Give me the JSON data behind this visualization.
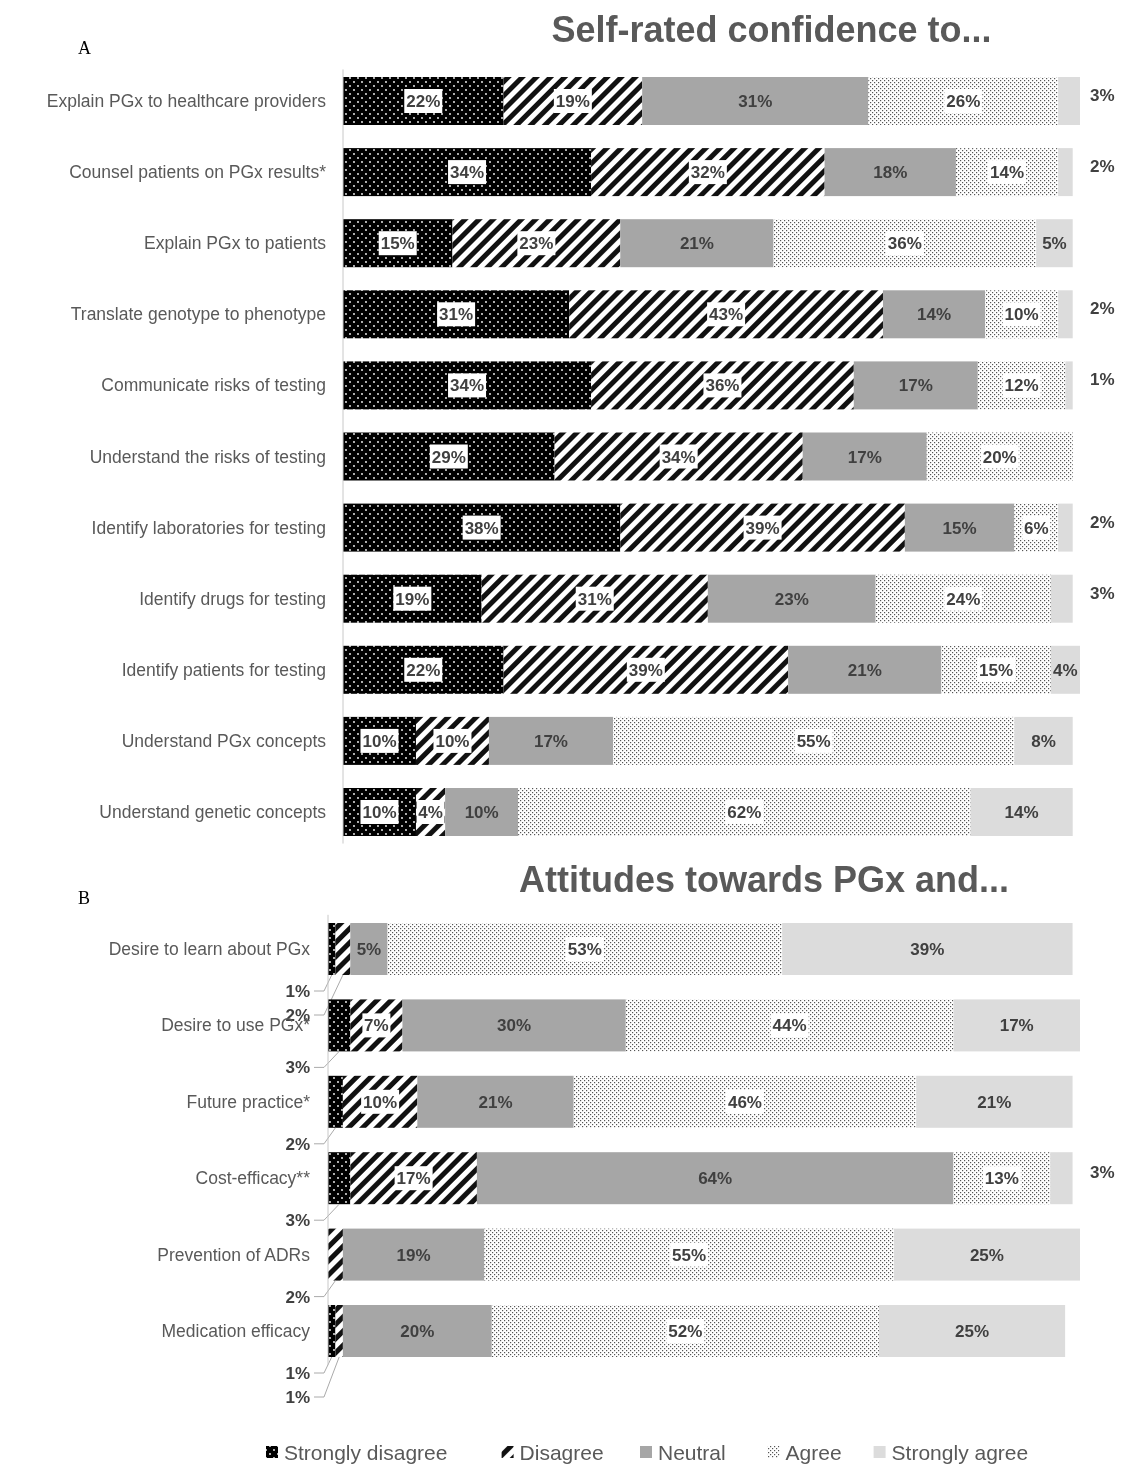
{
  "chart_data": [
    {
      "type": "bar",
      "orientation": "horizontal",
      "stacked": true,
      "title": "Self-rated confidence to...",
      "annotations": [
        "A"
      ],
      "categories": [
        "Explain PGx to healthcare providers",
        "Counsel patients on PGx results*",
        "Explain PGx to patients",
        "Translate genotype to phenotype",
        "Communicate risks of testing",
        "Understand the risks of testing",
        "Identify laboratories for testing",
        "Identify drugs for testing",
        "Identify patients for testing",
        "Understand PGx concepts",
        "Understand genetic concepts"
      ],
      "series": [
        {
          "color": "#000000",
          "values": [
            22,
            34,
            15,
            31,
            34,
            29,
            38,
            19,
            22,
            10,
            10
          ],
          "value_labels": [
            "22%",
            "34%",
            "15%",
            "31%",
            "34%",
            "29%",
            "38%",
            "19%",
            "22%",
            "10%",
            "10%"
          ]
        },
        {
          "color": "#111111",
          "values": [
            19,
            32,
            23,
            43,
            36,
            34,
            39,
            31,
            39,
            10,
            4
          ],
          "value_labels": [
            "19%",
            "32%",
            "23%",
            "43%",
            "36%",
            "34%",
            "39%",
            "31%",
            "39%",
            "10%",
            "4%"
          ]
        },
        {
          "color": "#a6a6a6",
          "values": [
            31,
            18,
            21,
            14,
            17,
            17,
            15,
            23,
            21,
            17,
            10
          ],
          "value_labels": [
            "31%",
            "18%",
            "21%",
            "14%",
            "17%",
            "17%",
            "15%",
            "23%",
            "21%",
            "17%",
            "10%"
          ]
        },
        {
          "color": "#555555",
          "values": [
            26,
            14,
            36,
            10,
            12,
            20,
            6,
            24,
            15,
            55,
            62
          ],
          "value_labels": [
            "26%",
            "14%",
            "36%",
            "10%",
            "12%",
            "20%",
            "6%",
            "24%",
            "15%",
            "55%",
            "62%"
          ]
        },
        {
          "color": "#dcdcdc",
          "values": [
            3,
            2,
            5,
            2,
            1,
            null,
            2,
            3,
            4,
            8,
            14
          ],
          "value_labels": [
            "3%",
            "2%",
            "5%",
            "2%",
            "1%",
            null,
            "2%",
            "3%",
            "4%",
            "8%",
            "14%"
          ]
        }
      ]
    },
    {
      "type": "bar",
      "orientation": "horizontal",
      "stacked": true,
      "title": "Attitudes towards PGx and...",
      "annotations": [
        "B"
      ],
      "legend": "bottom",
      "categories": [
        "Desire to learn about PGx",
        "Desire to use PGx*",
        "Future practice*",
        "Cost-efficacy**",
        "Prevention of ADRs",
        "Medication efficacy"
      ],
      "series": [
        {
          "name": "Strongly disagree",
          "color": "#000000",
          "values": [
            1,
            3,
            2,
            3,
            null,
            1
          ],
          "value_labels": [
            "1%",
            "3%",
            "2%",
            "3%",
            null,
            "1%"
          ]
        },
        {
          "name": "Disagree",
          "color": "#111111",
          "values": [
            2,
            7,
            10,
            17,
            2,
            1
          ],
          "value_labels": [
            "2%",
            "7%",
            "10%",
            "17%",
            "2%",
            "1%"
          ]
        },
        {
          "name": "Neutral",
          "color": "#a6a6a6",
          "values": [
            5,
            30,
            21,
            64,
            19,
            20
          ],
          "value_labels": [
            "5%",
            "30%",
            "21%",
            "64%",
            "19%",
            "20%"
          ]
        },
        {
          "name": "Agree",
          "color": "#555555",
          "values": [
            53,
            44,
            46,
            13,
            55,
            52
          ],
          "value_labels": [
            "53%",
            "44%",
            "46%",
            "13%",
            "55%",
            "52%"
          ]
        },
        {
          "name": "Strongly agree",
          "color": "#dcdcdc",
          "values": [
            39,
            17,
            21,
            3,
            25,
            25
          ],
          "value_labels": [
            "39%",
            "17%",
            "21%",
            "3%",
            "25%",
            "25%"
          ]
        }
      ]
    }
  ]
}
